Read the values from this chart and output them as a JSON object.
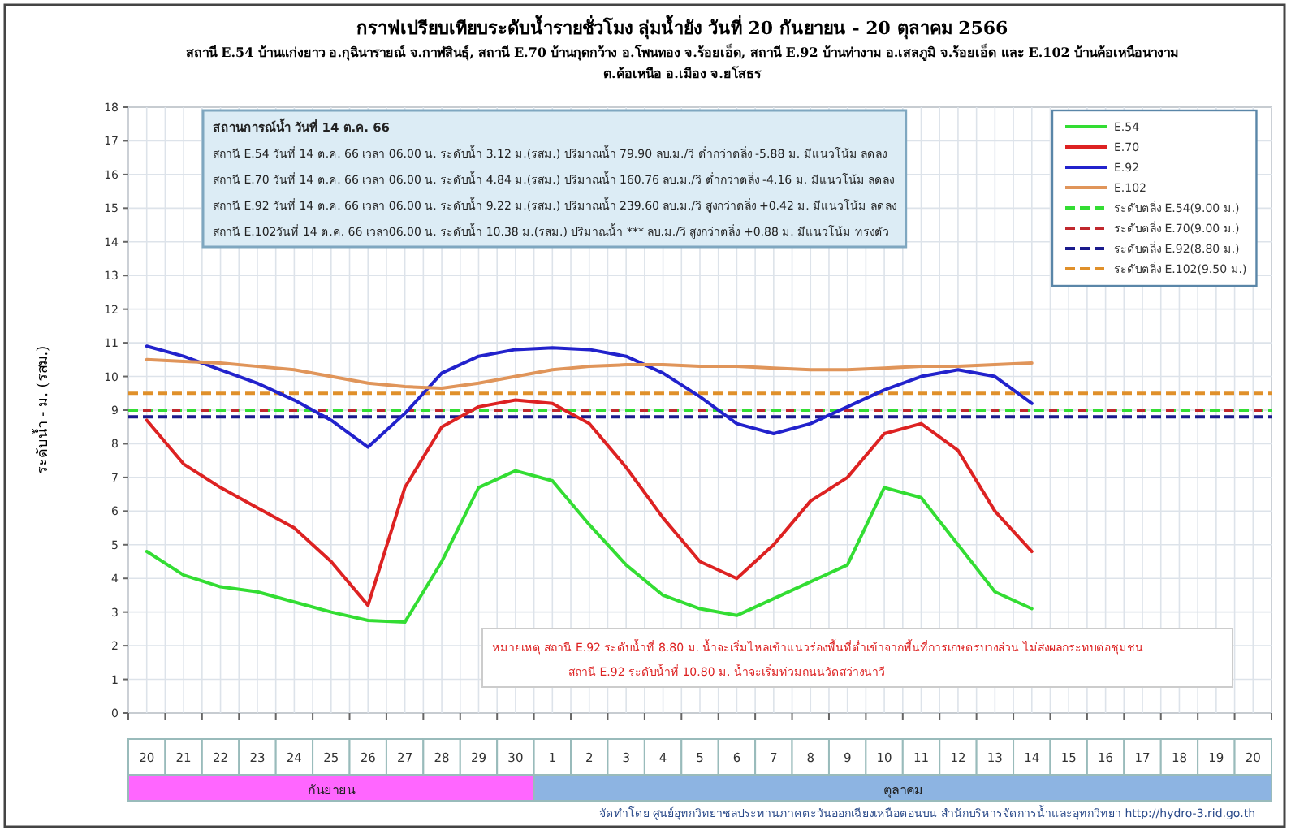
{
  "chart_data": {
    "type": "line",
    "title": "กราฟเปรียบเทียบระดับน้ำรายชั่วโมง ลุ่มน้ำยัง วันที่ 20 กันยายน - 20 ตุลาคม 2566",
    "subtitle": "สถานี E.54 บ้านแก่งยาว อ.กุฉินารายณ์ จ.กาฬสินธุ์, สถานี E.70 บ้านกุดกว้าง อ.โพนทอง จ.ร้อยเอ็ด, สถานี E.92 บ้านท่างาม อ.เสลภูมิ จ.ร้อยเอ็ด และ E.102 บ้านค้อเหนือนางาม ต.ค้อเหนือ อ.เมือง จ.ยโสธร",
    "ylabel": "ระดับน้ำ - ม. (รสม.)",
    "categories": [
      "20",
      "21",
      "22",
      "23",
      "24",
      "25",
      "26",
      "27",
      "28",
      "29",
      "30",
      "1",
      "2",
      "3",
      "4",
      "5",
      "6",
      "7",
      "8",
      "9",
      "10",
      "11",
      "12",
      "13",
      "14",
      "15",
      "16",
      "17",
      "18",
      "19",
      "20"
    ],
    "series": [
      {
        "name": "E.54",
        "color": "#33dd33",
        "values": [
          4.8,
          4.1,
          3.75,
          3.6,
          3.3,
          3.0,
          2.75,
          2.7,
          4.5,
          6.7,
          7.2,
          6.9,
          5.6,
          4.4,
          3.5,
          3.1,
          2.9,
          3.4,
          3.9,
          4.4,
          6.7,
          6.4,
          5.0,
          3.6,
          3.1,
          null,
          null,
          null,
          null,
          null,
          null
        ]
      },
      {
        "name": "E.70",
        "color": "#dd2222",
        "values": [
          8.7,
          7.4,
          6.7,
          6.1,
          5.5,
          4.5,
          3.2,
          6.7,
          8.5,
          9.1,
          9.3,
          9.2,
          8.6,
          7.3,
          5.8,
          4.5,
          4.0,
          5.0,
          6.3,
          7.0,
          8.3,
          8.6,
          7.8,
          6.0,
          4.8,
          null,
          null,
          null,
          null,
          null,
          null
        ]
      },
      {
        "name": "E.92",
        "color": "#2222cc",
        "values": [
          10.9,
          10.6,
          10.2,
          9.8,
          9.3,
          8.7,
          7.9,
          8.9,
          10.1,
          10.6,
          10.8,
          10.85,
          10.8,
          10.6,
          10.1,
          9.4,
          8.6,
          8.3,
          8.6,
          9.1,
          9.6,
          10.0,
          10.2,
          10.0,
          9.2,
          null,
          null,
          null,
          null,
          null,
          null
        ]
      },
      {
        "name": "E.102",
        "color": "#e0955a",
        "values": [
          10.5,
          10.45,
          10.4,
          10.3,
          10.2,
          10.0,
          9.8,
          9.7,
          9.65,
          9.8,
          10.0,
          10.2,
          10.3,
          10.35,
          10.35,
          10.3,
          10.3,
          10.25,
          10.2,
          10.2,
          10.25,
          10.3,
          10.3,
          10.35,
          10.4,
          null,
          null,
          null,
          null,
          null,
          null
        ]
      }
    ],
    "ref_lines": [
      {
        "axis": "y",
        "value": 9.0,
        "label": "ระดับตลิ่ง E.54(9.00 ม.)",
        "color": "#33dd33",
        "line_style": "dashed"
      },
      {
        "axis": "y",
        "value": 9.0,
        "label": "ระดับตลิ่ง E.70(9.00 ม.)",
        "color": "#c0282d",
        "line_style": "dashed"
      },
      {
        "axis": "y",
        "value": 8.8,
        "label": "ระดับตลิ่ง E.92(8.80 ม.)",
        "color": "#1a1a8c",
        "line_style": "dashed"
      },
      {
        "axis": "y",
        "value": 9.5,
        "label": "ระดับตลิ่ง E.102(9.50 ม.)",
        "color": "#e0902a",
        "line_style": "dashed"
      }
    ],
    "ylim": [
      0,
      18
    ],
    "yticks": [
      0,
      1,
      2,
      3,
      4,
      5,
      6,
      7,
      8,
      9,
      10,
      11,
      12,
      13,
      14,
      15,
      16,
      17,
      18
    ],
    "grid": true,
    "legend": "top right",
    "annotations": [
      "สถานการณ์น้ำ วันที่ 14 ต.ค. 66",
      "สถานี E.54 วันที่ 14 ต.ค. 66 เวลา 06.00 น. ระดับน้ำ 3.12 ม.(รสม.) ปริมาณน้ำ 79.90 ลบ.ม./วิ ต่ำกว่าตลิ่ง -5.88 ม. มีแนวโน้ม ลดลง",
      "สถานี E.70 วันที่ 14 ต.ค. 66 เวลา 06.00 น. ระดับน้ำ 4.84 ม.(รสม.) ปริมาณน้ำ 160.76 ลบ.ม./วิ ต่ำกว่าตลิ่ง -4.16 ม. มีแนวโน้ม ลดลง",
      "สถานี E.92 วันที่ 14 ต.ค. 66 เวลา 06.00 น. ระดับน้ำ 9.22 ม.(รสม.) ปริมาณน้ำ 239.60 ลบ.ม./วิ สูงกว่าตลิ่ง +0.42 ม. มีแนวโน้ม ลดลง",
      "สถานี E.102วันที่ 14 ต.ค. 66 เวลา06.00 น. ระดับน้ำ 10.38 ม.(รสม.) ปริมาณน้ำ *** ลบ.ม./วิ สูงกว่าตลิ่ง +0.88 ม. มีแนวโน้ม ทรงตัว",
      "หมายเหตุ สถานี E.92 ระดับน้ำที่ 8.80 ม. น้ำจะเริ่มไหลเข้าแนวร่องพื้นที่ต่ำเข้าจากพื้นที่การเกษตรบางส่วน ไม่ส่งผลกระทบต่อชุมชน",
      "สถานี E.92 ระดับน้ำที่ 10.80 ม. น้ำจะเริ่มท่วมถนนวัดสว่างนาวี",
      "จัดทำโดย ศูนย์อุทกวิทยาชลประทานภาคตะวันออกเฉียงเหนือตอนบน สำนักบริหารจัดการน้ำและอุทกวิทยา http://hydro-3.rid.go.th",
      "กันยายน",
      "ตุลาคม"
    ]
  }
}
